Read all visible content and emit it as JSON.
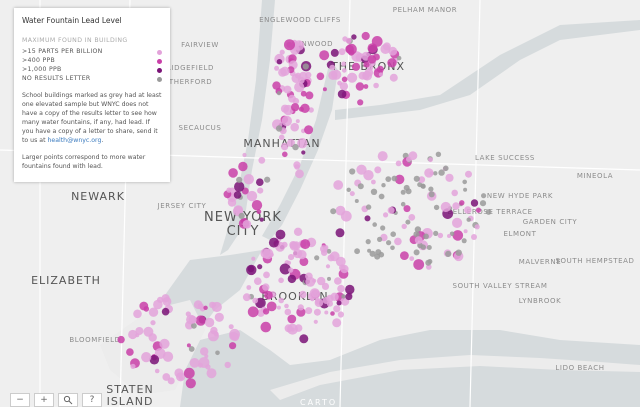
{
  "map": {
    "legend": {
      "title": "Water Fountain Lead Level",
      "subtitle": "MAXIMUM FOUND IN BUILDING",
      "items": [
        {
          "label": ">15 PARTS PER BILLION",
          "color": "#e3a3da"
        },
        {
          "label": ">400 PPB",
          "color": "#c93fa8"
        },
        {
          "label": ">1,000 PPB",
          "color": "#7a1377"
        },
        {
          "label": "NO RESULTS LETTER",
          "color": "#9a9a9a"
        }
      ],
      "note": "School buildings marked as grey had at least one elevated sample but WNYC does not have a copy of the results letter to see how many water fountains, if any, had lead. If you have a copy of a letter to share, send it to us at",
      "note_link": "health@wnyc.org",
      "note_end": ".",
      "footnote": "Larger points correspond to more water fountains found with lead."
    },
    "place_labels": [
      "PELHAM MANOR",
      "ENGLEWOOD CLIFFS",
      "FAIRVIEW",
      "RIDGEFIELD",
      "RUTHERFORD",
      "INWOOD",
      "THE BRONX",
      "SECAUCUS",
      "MANHATTAN",
      "LAKE SUCCESS",
      "NEWARK",
      "JERSEY CITY",
      "NEW YORK",
      "CITY",
      "NEW HYDE PARK",
      "BELLEROSE TERRACE",
      "GARDEN CITY",
      "ELMONT",
      "MINEOLA",
      "MALVERNE",
      "SOUTH HEMPSTEAD",
      "ELIZABETH",
      "SOUTH VALLEY STREAM",
      "LYNBROOK",
      "BROOKLYN",
      "BLOOMFIELD",
      "LIDO BEACH",
      "STATEN",
      "ISLAND"
    ],
    "controls": {
      "zoom_out": "−",
      "zoom_in": "+",
      "help": "?"
    },
    "attribution": "CARTO"
  }
}
